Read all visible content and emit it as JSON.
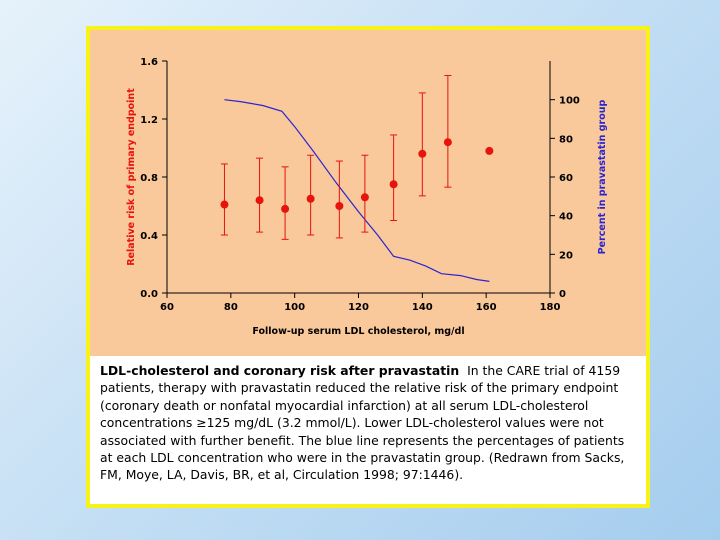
{
  "caption": {
    "title": "LDL-cholesterol and coronary risk after pravastatin",
    "body": "In the CARE trial of 4159 patients, therapy with pravastatin reduced the relative risk of the primary endpoint (coronary death or nonfatal myocardial infarction) at all serum LDL-cholesterol concentrations ≥125 mg/dL (3.2 mmol/L). Lower LDL-cholesterol values were not associated with further benefit. The blue line represents the percentages of patients at each LDL concentration who were in the pravastatin group. (Redrawn from Sacks, FM, Moye, LA, Davis, BR, et al, Circulation 1998; 97:1446)."
  },
  "colors": {
    "background": "#c3def4",
    "frame_border": "#f7f21a",
    "chart_background": "#f9c89b",
    "risk_series": "#e8130c",
    "percent_series": "#2a25d0",
    "axis": "#000000"
  },
  "chart_data": {
    "type": "scatter",
    "xlabel": "Follow-up serum LDL cholesterol, mg/dl",
    "ylabel_left": "Relative risk of primary endpoint",
    "ylabel_right": "Percent in pravastatin group",
    "xlim": [
      60,
      180
    ],
    "ylim_left": [
      0.0,
      1.6
    ],
    "ylim_right": [
      0,
      120
    ],
    "x_ticks": [
      "60",
      "80",
      "100",
      "120",
      "140",
      "160",
      "180"
    ],
    "y_left_ticks": [
      "0.0",
      "0.4",
      "0.8",
      "1.2",
      "1.6"
    ],
    "y_right_ticks": [
      "0",
      "20",
      "40",
      "60",
      "80",
      "100"
    ],
    "grid": false,
    "series": [
      {
        "axis": "left",
        "kind": "points_with_error_bars",
        "x": [
          78,
          89,
          97,
          105,
          114,
          122,
          131,
          140,
          148,
          161
        ],
        "y": [
          0.61,
          0.64,
          0.58,
          0.65,
          0.6,
          0.66,
          0.75,
          0.96,
          1.04,
          0.98
        ],
        "y_low": [
          0.4,
          0.42,
          0.37,
          0.4,
          0.38,
          0.42,
          0.5,
          0.67,
          0.73,
          null
        ],
        "y_high": [
          0.89,
          0.93,
          0.87,
          0.95,
          0.91,
          0.95,
          1.09,
          1.38,
          1.5,
          null
        ]
      },
      {
        "axis": "right",
        "kind": "line",
        "x": [
          78,
          83,
          90,
          96,
          100,
          106,
          113,
          120,
          126,
          131,
          136,
          141,
          146,
          152,
          157,
          161
        ],
        "y": [
          100,
          99,
          97,
          94,
          86,
          73,
          57,
          42,
          30,
          19,
          17,
          14,
          10,
          9,
          7,
          6
        ]
      }
    ]
  }
}
